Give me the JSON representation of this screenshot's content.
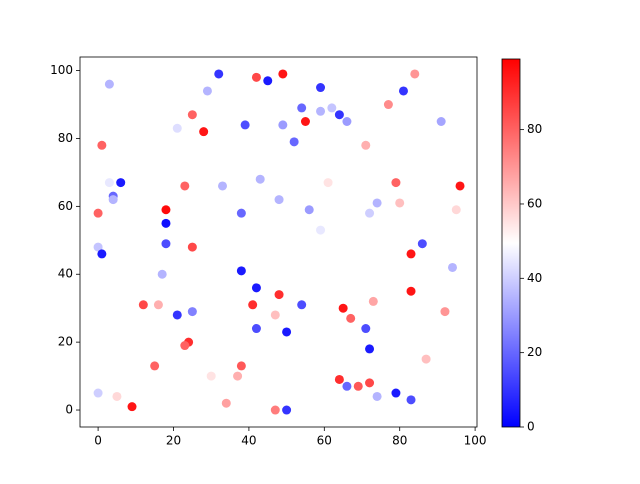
{
  "chart_data": {
    "type": "scatter",
    "x": [
      3,
      32,
      42,
      45,
      49,
      84,
      29,
      59,
      81,
      77,
      54,
      59,
      62,
      25,
      64,
      66,
      55,
      91,
      21,
      39,
      49,
      28,
      52,
      1,
      71,
      3,
      6,
      23,
      33,
      43,
      79,
      61,
      96,
      4,
      4,
      48,
      74,
      80,
      0,
      18,
      38,
      56,
      72,
      95,
      18,
      59,
      0,
      1,
      18,
      25,
      86,
      83,
      38,
      17,
      94,
      42,
      83,
      48,
      12,
      16,
      41,
      54,
      73,
      65,
      92,
      21,
      25,
      47,
      67,
      42,
      50,
      71,
      24,
      23,
      72,
      15,
      38,
      87,
      37,
      30,
      64,
      66,
      69,
      72,
      0,
      5,
      79,
      74,
      83,
      9,
      34,
      47,
      50
    ],
    "y": [
      96,
      99,
      98,
      97,
      99,
      99,
      94,
      95,
      94,
      90,
      89,
      88,
      89,
      87,
      87,
      85,
      85,
      85,
      83,
      84,
      84,
      82,
      79,
      78,
      78,
      67,
      67,
      66,
      66,
      68,
      67,
      67,
      66,
      63,
      62,
      62,
      61,
      61,
      58,
      59,
      58,
      59,
      58,
      59,
      55,
      53,
      48,
      46,
      49,
      48,
      49,
      46,
      41,
      40,
      42,
      36,
      35,
      34,
      31,
      31,
      31,
      31,
      32,
      30,
      29,
      28,
      29,
      28,
      27,
      24,
      23,
      24,
      20,
      19,
      18,
      13,
      13,
      15,
      10,
      10,
      9,
      7,
      7,
      8,
      5,
      4,
      5,
      4,
      3,
      1,
      2,
      0,
      0
    ],
    "c": [
      35,
      10,
      85,
      5,
      95,
      70,
      35,
      10,
      10,
      72,
      20,
      35,
      38,
      80,
      10,
      30,
      95,
      32,
      43,
      15,
      30,
      95,
      20,
      80,
      65,
      45,
      5,
      80,
      35,
      35,
      80,
      55,
      95,
      20,
      35,
      35,
      35,
      62,
      80,
      97,
      20,
      30,
      40,
      57,
      3,
      45,
      38,
      5,
      15,
      85,
      15,
      95,
      5,
      35,
      35,
      5,
      95,
      90,
      85,
      65,
      90,
      15,
      67,
      95,
      70,
      10,
      25,
      62,
      80,
      15,
      5,
      15,
      90,
      80,
      5,
      80,
      82,
      62,
      65,
      55,
      90,
      20,
      82,
      85,
      40,
      57,
      5,
      35,
      15,
      95,
      68,
      75,
      10
    ],
    "colormap": "bwr",
    "clim": [
      0,
      99
    ],
    "xlim": [
      -4.8,
      100.5
    ],
    "ylim": [
      -5,
      104
    ],
    "xticks": [
      0,
      20,
      40,
      60,
      80,
      100
    ],
    "yticks": [
      0,
      20,
      40,
      60,
      80,
      100
    ],
    "colorbar_ticks": [
      0,
      20,
      40,
      60,
      80
    ]
  }
}
